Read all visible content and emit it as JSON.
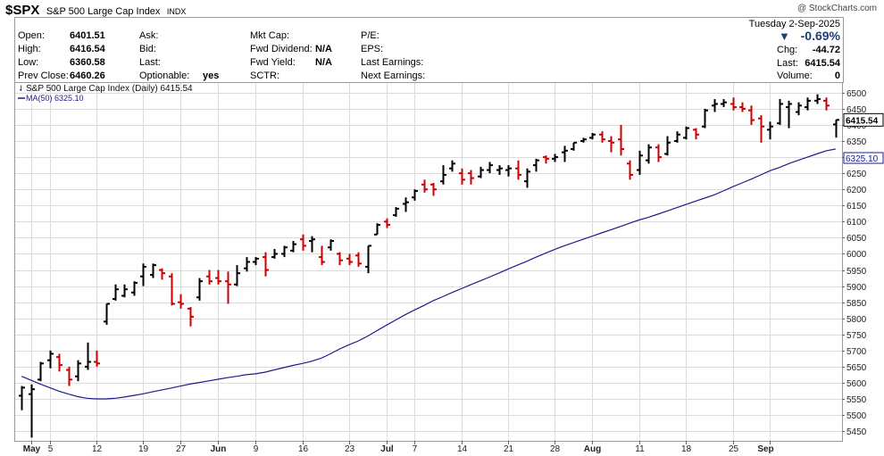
{
  "header": {
    "symbol": "$SPX",
    "name": "S&P 500 Large Cap Index",
    "exchange": "INDX",
    "copyright": "@ StockCharts.com"
  },
  "quote": {
    "date": "Tuesday  2-Sep-2025",
    "change_pct": "-0.69%",
    "change_label": "Chg:",
    "change_value": "-44.72",
    "last_label": "Last:",
    "last_value": "6415.54",
    "volume_label": "Volume:",
    "volume_value": "0",
    "open_label": "Open:",
    "open": "6401.51",
    "high_label": "High:",
    "high": "6416.54",
    "low_label": "Low:",
    "low": "6360.58",
    "prev_close_label": "Prev Close:",
    "prev_close": "6460.26",
    "ask_label": "Ask:",
    "bid_label": "Bid:",
    "last2_label": "Last:",
    "optionable_label": "Optionable:",
    "optionable": "yes",
    "mktcap_label": "Mkt Cap:",
    "fwd_div_label": "Fwd Dividend:",
    "fwd_div": "N/A",
    "fwd_yield_label": "Fwd Yield:",
    "fwd_yield": "N/A",
    "sctr_label": "SCTR:",
    "pe_label": "P/E:",
    "eps_label": "EPS:",
    "last_earnings_label": "Last Earnings:",
    "next_earnings_label": "Next Earnings:"
  },
  "colors": {
    "up": "#000000",
    "down": "#cc0000",
    "ma": "#1c1c8c",
    "grid": "#dcdcdc"
  },
  "chart_data": {
    "type": "ohlc",
    "legend": [
      "S&P 500 Large Cap Index (Daily) 6415.54",
      "MA(50) 6325.10"
    ],
    "last_price_label": "6415.54",
    "ma_label": "6325.10",
    "ylim": [
      5420,
      6530
    ],
    "yticks": [
      5450,
      5500,
      5550,
      5600,
      5650,
      5700,
      5750,
      5800,
      5850,
      5900,
      5950,
      6000,
      6050,
      6100,
      6150,
      6200,
      6250,
      6300,
      6350,
      6400,
      6450,
      6500
    ],
    "xticks": [
      {
        "label": "May",
        "i": 1,
        "bold": true
      },
      {
        "label": "5",
        "i": 3
      },
      {
        "label": "12",
        "i": 8
      },
      {
        "label": "19",
        "i": 13
      },
      {
        "label": "27",
        "i": 17
      },
      {
        "label": "Jun",
        "i": 21,
        "bold": true
      },
      {
        "label": "9",
        "i": 25
      },
      {
        "label": "16",
        "i": 30
      },
      {
        "label": "23",
        "i": 35
      },
      {
        "label": "Jul",
        "i": 39,
        "bold": true
      },
      {
        "label": "7",
        "i": 42
      },
      {
        "label": "14",
        "i": 47
      },
      {
        "label": "21",
        "i": 52
      },
      {
        "label": "28",
        "i": 57
      },
      {
        "label": "Aug",
        "i": 61,
        "bold": true
      },
      {
        "label": "11",
        "i": 66
      },
      {
        "label": "18",
        "i": 71
      },
      {
        "label": "25",
        "i": 76
      },
      {
        "label": "Sep",
        "i": 80,
        "bold": true
      }
    ],
    "bars": [
      {
        "o": 5560,
        "h": 5590,
        "l": 5515,
        "c": 5585
      },
      {
        "o": 5565,
        "h": 5595,
        "l": 5430,
        "c": 5580
      },
      {
        "o": 5610,
        "h": 5665,
        "l": 5605,
        "c": 5660
      },
      {
        "o": 5670,
        "h": 5700,
        "l": 5645,
        "c": 5690
      },
      {
        "o": 5680,
        "h": 5690,
        "l": 5635,
        "c": 5655
      },
      {
        "o": 5640,
        "h": 5650,
        "l": 5590,
        "c": 5610
      },
      {
        "o": 5620,
        "h": 5670,
        "l": 5605,
        "c": 5660
      },
      {
        "o": 5650,
        "h": 5725,
        "l": 5640,
        "c": 5665
      },
      {
        "o": 5665,
        "h": 5700,
        "l": 5650,
        "c": 5660
      },
      {
        "o": 5790,
        "h": 5845,
        "l": 5780,
        "c": 5845
      },
      {
        "o": 5860,
        "h": 5905,
        "l": 5855,
        "c": 5890
      },
      {
        "o": 5870,
        "h": 5905,
        "l": 5865,
        "c": 5890
      },
      {
        "o": 5880,
        "h": 5915,
        "l": 5870,
        "c": 5910
      },
      {
        "o": 5930,
        "h": 5970,
        "l": 5900,
        "c": 5960
      },
      {
        "o": 5935,
        "h": 5970,
        "l": 5925,
        "c": 5965
      },
      {
        "o": 5950,
        "h": 5955,
        "l": 5920,
        "c": 5940
      },
      {
        "o": 5930,
        "h": 5940,
        "l": 5840,
        "c": 5845
      },
      {
        "o": 5850,
        "h": 5875,
        "l": 5830,
        "c": 5845
      },
      {
        "o": 5830,
        "h": 5835,
        "l": 5775,
        "c": 5805
      },
      {
        "o": 5865,
        "h": 5925,
        "l": 5855,
        "c": 5915
      },
      {
        "o": 5930,
        "h": 5950,
        "l": 5905,
        "c": 5915
      },
      {
        "o": 5925,
        "h": 5950,
        "l": 5905,
        "c": 5915
      },
      {
        "o": 5915,
        "h": 5945,
        "l": 5845,
        "c": 5905
      },
      {
        "o": 5905,
        "h": 5965,
        "l": 5900,
        "c": 5940
      },
      {
        "o": 5955,
        "h": 5990,
        "l": 5945,
        "c": 5975
      },
      {
        "o": 5975,
        "h": 5990,
        "l": 5965,
        "c": 5985
      },
      {
        "o": 5990,
        "h": 6005,
        "l": 5930,
        "c": 5950
      },
      {
        "o": 5990,
        "h": 6015,
        "l": 5985,
        "c": 6000
      },
      {
        "o": 6000,
        "h": 6025,
        "l": 5990,
        "c": 6020
      },
      {
        "o": 6010,
        "h": 6040,
        "l": 6005,
        "c": 6030
      },
      {
        "o": 6045,
        "h": 6060,
        "l": 6010,
        "c": 6025
      },
      {
        "o": 6040,
        "h": 6055,
        "l": 6005,
        "c": 6045
      },
      {
        "o": 5990,
        "h": 6025,
        "l": 5965,
        "c": 5975
      },
      {
        "o": 6020,
        "h": 6045,
        "l": 6010,
        "c": 6040
      },
      {
        "o": 6000,
        "h": 6005,
        "l": 5965,
        "c": 5980
      },
      {
        "o": 5985,
        "h": 6000,
        "l": 5965,
        "c": 5975
      },
      {
        "o": 5995,
        "h": 6005,
        "l": 5960,
        "c": 5970
      },
      {
        "o": 5960,
        "h": 6025,
        "l": 5940,
        "c": 6025
      },
      {
        "o": 6060,
        "h": 6095,
        "l": 6060,
        "c": 6090
      },
      {
        "o": 6100,
        "h": 6110,
        "l": 6080,
        "c": 6090
      },
      {
        "o": 6120,
        "h": 6145,
        "l": 6115,
        "c": 6140
      },
      {
        "o": 6155,
        "h": 6175,
        "l": 6130,
        "c": 6160
      },
      {
        "o": 6175,
        "h": 6200,
        "l": 6165,
        "c": 6195
      },
      {
        "o": 6215,
        "h": 6230,
        "l": 6190,
        "c": 6200
      },
      {
        "o": 6215,
        "h": 6220,
        "l": 6180,
        "c": 6200
      },
      {
        "o": 6225,
        "h": 6275,
        "l": 6215,
        "c": 6245
      },
      {
        "o": 6265,
        "h": 6290,
        "l": 6255,
        "c": 6280
      },
      {
        "o": 6250,
        "h": 6265,
        "l": 6215,
        "c": 6230
      },
      {
        "o": 6250,
        "h": 6260,
        "l": 6215,
        "c": 6235
      },
      {
        "o": 6240,
        "h": 6270,
        "l": 6235,
        "c": 6260
      },
      {
        "o": 6260,
        "h": 6285,
        "l": 6250,
        "c": 6275
      },
      {
        "o": 6260,
        "h": 6275,
        "l": 6245,
        "c": 6265
      },
      {
        "o": 6260,
        "h": 6275,
        "l": 6240,
        "c": 6265
      },
      {
        "o": 6265,
        "h": 6290,
        "l": 6230,
        "c": 6245
      },
      {
        "o": 6225,
        "h": 6265,
        "l": 6205,
        "c": 6255
      },
      {
        "o": 6275,
        "h": 6295,
        "l": 6255,
        "c": 6290
      },
      {
        "o": 6300,
        "h": 6305,
        "l": 6280,
        "c": 6295
      },
      {
        "o": 6295,
        "h": 6310,
        "l": 6285,
        "c": 6300
      },
      {
        "o": 6315,
        "h": 6335,
        "l": 6285,
        "c": 6320
      },
      {
        "o": 6325,
        "h": 6345,
        "l": 6320,
        "c": 6345
      },
      {
        "o": 6350,
        "h": 6360,
        "l": 6345,
        "c": 6355
      },
      {
        "o": 6360,
        "h": 6375,
        "l": 6355,
        "c": 6370
      },
      {
        "o": 6370,
        "h": 6380,
        "l": 6345,
        "c": 6355
      },
      {
        "o": 6350,
        "h": 6365,
        "l": 6315,
        "c": 6345
      },
      {
        "o": 6355,
        "h": 6400,
        "l": 6305,
        "c": 6325
      },
      {
        "o": 6280,
        "h": 6290,
        "l": 6230,
        "c": 6245
      },
      {
        "o": 6260,
        "h": 6320,
        "l": 6245,
        "c": 6305
      },
      {
        "o": 6290,
        "h": 6340,
        "l": 6280,
        "c": 6330
      },
      {
        "o": 6330,
        "h": 6340,
        "l": 6285,
        "c": 6300
      },
      {
        "o": 6310,
        "h": 6365,
        "l": 6305,
        "c": 6345
      },
      {
        "o": 6350,
        "h": 6380,
        "l": 6345,
        "c": 6370
      },
      {
        "o": 6360,
        "h": 6395,
        "l": 6355,
        "c": 6390
      },
      {
        "o": 6385,
        "h": 6390,
        "l": 6355,
        "c": 6370
      },
      {
        "o": 6395,
        "h": 6450,
        "l": 6390,
        "c": 6445
      },
      {
        "o": 6460,
        "h": 6480,
        "l": 6440,
        "c": 6465
      },
      {
        "o": 6465,
        "h": 6480,
        "l": 6455,
        "c": 6470
      },
      {
        "o": 6465,
        "h": 6485,
        "l": 6445,
        "c": 6455
      },
      {
        "o": 6455,
        "h": 6470,
        "l": 6440,
        "c": 6450
      },
      {
        "o": 6445,
        "h": 6460,
        "l": 6400,
        "c": 6415
      },
      {
        "o": 6420,
        "h": 6430,
        "l": 6345,
        "c": 6395
      },
      {
        "o": 6385,
        "h": 6410,
        "l": 6355,
        "c": 6395
      },
      {
        "o": 6405,
        "h": 6480,
        "l": 6400,
        "c": 6465
      },
      {
        "o": 6455,
        "h": 6475,
        "l": 6390,
        "c": 6465
      },
      {
        "o": 6440,
        "h": 6470,
        "l": 6430,
        "c": 6460
      },
      {
        "o": 6455,
        "h": 6485,
        "l": 6445,
        "c": 6475
      },
      {
        "o": 6475,
        "h": 6495,
        "l": 6465,
        "c": 6480
      },
      {
        "o": 6475,
        "h": 6485,
        "l": 6445,
        "c": 6460
      },
      {
        "o": 6401.51,
        "h": 6416.54,
        "l": 6360.58,
        "c": 6415.54
      }
    ],
    "ma50": [
      5620,
      5608,
      5596,
      5585,
      5574,
      5565,
      5557,
      5552,
      5550,
      5550,
      5552,
      5556,
      5561,
      5566,
      5572,
      5578,
      5584,
      5590,
      5596,
      5601,
      5606,
      5611,
      5616,
      5620,
      5625,
      5628,
      5633,
      5640,
      5647,
      5654,
      5660,
      5667,
      5676,
      5690,
      5705,
      5718,
      5730,
      5745,
      5762,
      5779,
      5795,
      5811,
      5826,
      5840,
      5855,
      5867,
      5880,
      5892,
      5904,
      5916,
      5928,
      5940,
      5953,
      5965,
      5977,
      5990,
      6002,
      6014,
      6025,
      6035,
      6045,
      6055,
      6065,
      6075,
      6085,
      6095,
      6105,
      6113,
      6123,
      6133,
      6143,
      6153,
      6163,
      6173,
      6183,
      6195,
      6208,
      6220,
      6232,
      6245,
      6258,
      6268,
      6280,
      6290,
      6300,
      6310,
      6320,
      6325.1
    ]
  }
}
